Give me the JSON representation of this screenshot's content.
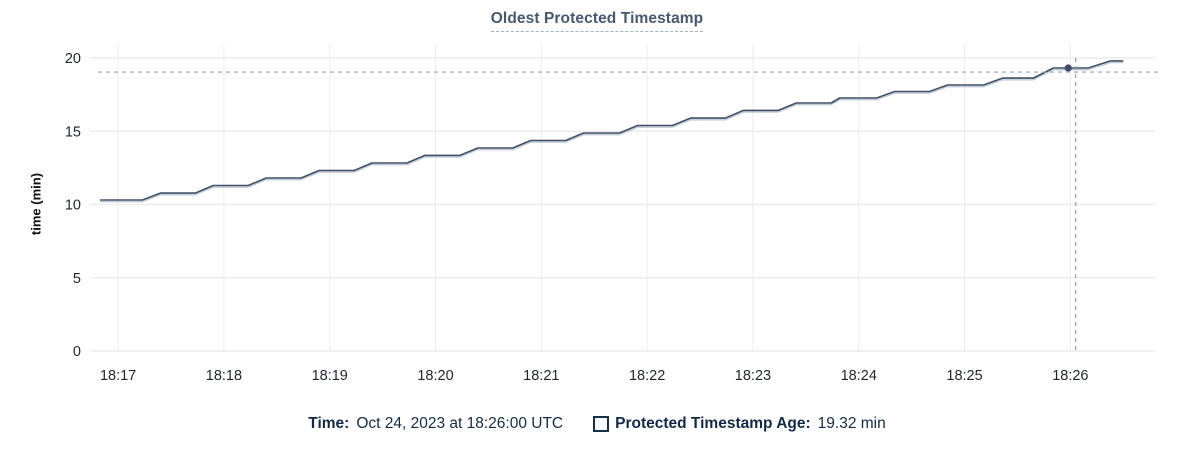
{
  "chart_data": {
    "type": "line",
    "title": "Oldest Protected Timestamp",
    "ylabel": "time (min)",
    "xlabel": "",
    "grid": true,
    "x_axis": {
      "lim": [
        16.81,
        26.8
      ],
      "unit": "time of day (18:MM)",
      "ticks": [
        {
          "value": 17,
          "label": "18:17"
        },
        {
          "value": 18,
          "label": "18:18"
        },
        {
          "value": 19,
          "label": "18:19"
        },
        {
          "value": 20,
          "label": "18:20"
        },
        {
          "value": 21,
          "label": "18:21"
        },
        {
          "value": 22,
          "label": "18:22"
        },
        {
          "value": 23,
          "label": "18:23"
        },
        {
          "value": 24,
          "label": "18:24"
        },
        {
          "value": 25,
          "label": "18:25"
        },
        {
          "value": 26,
          "label": "18:26"
        }
      ]
    },
    "y_axis": {
      "lim": [
        0,
        20
      ],
      "ticks": [
        {
          "value": 0,
          "label": "0"
        },
        {
          "value": 5,
          "label": "5"
        },
        {
          "value": 10,
          "label": "10"
        },
        {
          "value": 15,
          "label": "15"
        },
        {
          "value": 20,
          "label": "20"
        }
      ]
    },
    "series": [
      {
        "name": "Protected Timestamp Age",
        "unit": "min",
        "points": [
          [
            16.83,
            10.31
          ],
          [
            17.23,
            10.31
          ],
          [
            17.4,
            10.78
          ],
          [
            17.73,
            10.78
          ],
          [
            17.9,
            11.3
          ],
          [
            18.23,
            11.3
          ],
          [
            18.4,
            11.81
          ],
          [
            18.73,
            11.81
          ],
          [
            18.9,
            12.32
          ],
          [
            19.23,
            12.32
          ],
          [
            19.4,
            12.83
          ],
          [
            19.73,
            12.83
          ],
          [
            19.9,
            13.35
          ],
          [
            20.23,
            13.35
          ],
          [
            20.4,
            13.86
          ],
          [
            20.73,
            13.86
          ],
          [
            20.9,
            14.37
          ],
          [
            21.23,
            14.37
          ],
          [
            21.4,
            14.88
          ],
          [
            21.74,
            14.88
          ],
          [
            21.91,
            15.39
          ],
          [
            22.24,
            15.39
          ],
          [
            22.41,
            15.9
          ],
          [
            22.74,
            15.9
          ],
          [
            22.91,
            16.42
          ],
          [
            23.24,
            16.42
          ],
          [
            23.41,
            16.93
          ],
          [
            23.74,
            16.93
          ],
          [
            23.82,
            17.27
          ],
          [
            24.17,
            17.27
          ],
          [
            24.34,
            17.71
          ],
          [
            24.67,
            17.71
          ],
          [
            24.84,
            18.16
          ],
          [
            25.18,
            18.16
          ],
          [
            25.36,
            18.63
          ],
          [
            25.65,
            18.63
          ],
          [
            25.84,
            19.32
          ],
          [
            26.17,
            19.32
          ],
          [
            26.38,
            19.8
          ],
          [
            26.5,
            19.8
          ]
        ]
      }
    ],
    "crosshair": {
      "x": 26.05,
      "y": 19.04
    },
    "highlighted_point": {
      "x": 25.98,
      "y": 19.32,
      "time": "18:26:00",
      "value_label": "19.32 min"
    },
    "legend_position": "bottom-center",
    "colors": {
      "line": "#3f4e66",
      "halo": "#b9c4d2",
      "grid": "#ececec",
      "crosshair": "#8fa5ae",
      "tick_text": "#1f2630",
      "title": "#475872",
      "legend_text": "#132a47",
      "point": "#3f4e66",
      "background": "#ffffff"
    }
  },
  "tooltip": {
    "time_label": "Time:",
    "time_value": "Oct 24, 2023 at 18:26:00 UTC",
    "series_label": "Protected Timestamp Age:",
    "series_value": "19.32 min"
  }
}
